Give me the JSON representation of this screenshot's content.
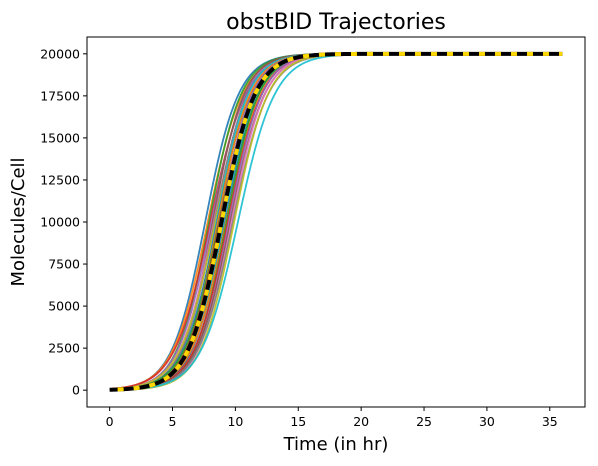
{
  "chart_data": {
    "type": "line",
    "title": "obstBID Trajectories",
    "xlabel": "Time (in hr)",
    "ylabel": "Molecules/Cell",
    "xlim": [
      -1.8,
      37.8
    ],
    "ylim": [
      -1000,
      21000
    ],
    "xticks": [
      0,
      5,
      10,
      15,
      20,
      25,
      30,
      35
    ],
    "yticks": [
      0,
      2500,
      5000,
      7500,
      10000,
      12500,
      15000,
      17500,
      20000
    ],
    "grid": false,
    "legend": "none",
    "trajectory_model": "sigmoid",
    "trajectory_ymax": 20000,
    "trajectory_x_range": [
      0,
      36
    ],
    "trajectory_count": 30,
    "trajectory_midpoints": [
      7.6,
      7.8,
      7.9,
      8.0,
      8.1,
      8.2,
      8.3,
      8.35,
      8.4,
      8.5,
      8.55,
      8.6,
      8.7,
      8.75,
      8.8,
      8.85,
      8.9,
      9.0,
      9.05,
      9.1,
      9.2,
      9.25,
      9.3,
      9.4,
      9.5,
      9.6,
      9.7,
      9.8,
      9.9,
      10.2
    ],
    "trajectory_steepness": [
      0.75,
      0.72,
      0.78,
      0.7,
      0.74,
      0.8,
      0.73,
      0.76,
      0.71,
      0.79,
      0.74,
      0.77,
      0.72,
      0.75,
      0.78,
      0.73,
      0.76,
      0.74,
      0.71,
      0.77,
      0.75,
      0.72,
      0.78,
      0.74,
      0.76,
      0.73,
      0.75,
      0.71,
      0.74,
      0.68
    ],
    "trajectory_colors": [
      "#1f77b4",
      "#ff7f0e",
      "#2ca02c",
      "#d62728",
      "#9467bd",
      "#8c564b",
      "#e377c2",
      "#7f7f7f",
      "#bcbd22",
      "#17becf"
    ],
    "mean_line": {
      "color_dark": "#000000",
      "color_light": "#ffd700",
      "midpoint": 8.9,
      "steepness": 0.75
    }
  }
}
